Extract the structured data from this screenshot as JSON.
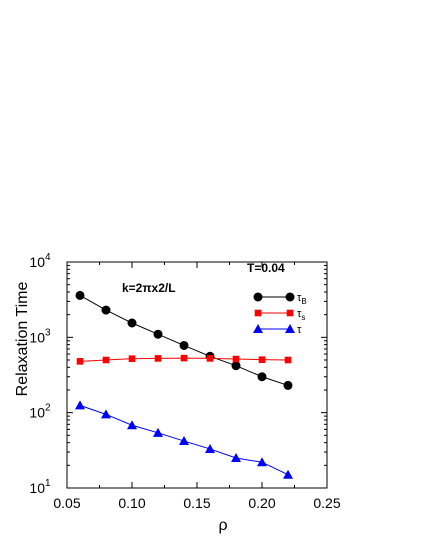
{
  "chart_data": {
    "type": "line",
    "title": "",
    "xlabel": "ρ",
    "ylabel": "Relaxation Time",
    "xlim": [
      0.05,
      0.25
    ],
    "ylim": [
      10,
      10000
    ],
    "yscale": "log",
    "x_ticks": [
      "0.05",
      "0.10",
      "0.15",
      "0.20",
      "0.25"
    ],
    "y_ticks": [
      {
        "base": "10",
        "exp": "1"
      },
      {
        "base": "10",
        "exp": "2"
      },
      {
        "base": "10",
        "exp": "3"
      },
      {
        "base": "10",
        "exp": "4"
      }
    ],
    "annotation": "k=2πx2/L",
    "legend_title": "T=0.04",
    "legend_position": "top-right",
    "x": [
      0.06,
      0.08,
      0.1,
      0.12,
      0.14,
      0.16,
      0.18,
      0.2,
      0.22
    ],
    "series": [
      {
        "name_base": "τ",
        "name_sub": "B",
        "marker": "circle",
        "color": "#000000",
        "values": [
          3600,
          2300,
          1550,
          1100,
          780,
          560,
          420,
          300,
          230
        ]
      },
      {
        "name_base": "τ",
        "name_sub": "s",
        "marker": "square",
        "color": "#ff0000",
        "values": [
          480,
          500,
          520,
          525,
          530,
          525,
          515,
          505,
          500
        ]
      },
      {
        "name_base": "τ",
        "name_sub": "",
        "marker": "triangle",
        "color": "#0000ff",
        "values": [
          125,
          95,
          68,
          54,
          42,
          33,
          25,
          22,
          15
        ]
      }
    ]
  }
}
